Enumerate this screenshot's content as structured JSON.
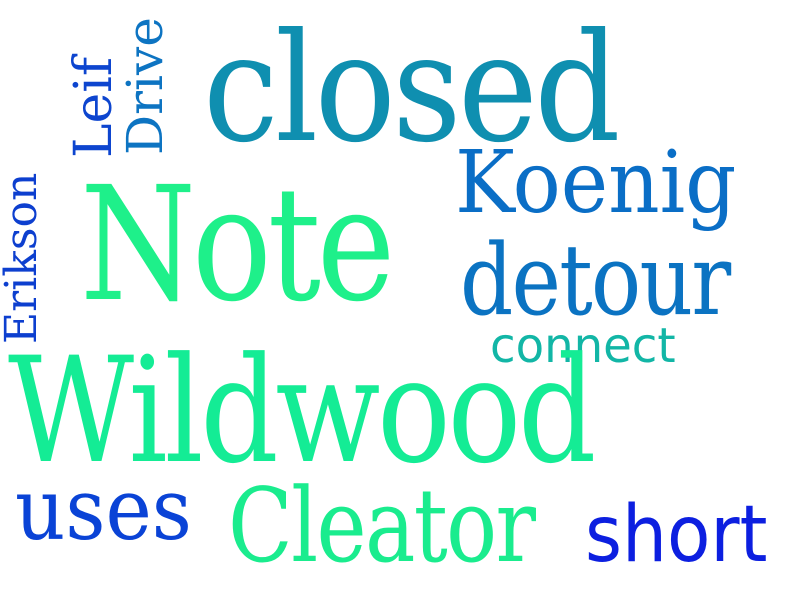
{
  "cloud": {
    "words": {
      "closed": {
        "text": "closed",
        "color": "#0f8fb0"
      },
      "note": {
        "text": "Note",
        "color": "#1ef08a"
      },
      "koenig": {
        "text": "Koenig",
        "color": "#0a6ec6"
      },
      "detour": {
        "text": "detour",
        "color": "#0b73c2"
      },
      "connect": {
        "text": "connect",
        "color": "#12b6a6"
      },
      "wildwood": {
        "text": "Wildwood",
        "color": "#14ec95"
      },
      "uses": {
        "text": "uses",
        "color": "#0a43d6"
      },
      "cleator": {
        "text": "Cleator",
        "color": "#1aec8e"
      },
      "short": {
        "text": "short",
        "color": "#0c1fe0"
      },
      "erikson": {
        "text": "Erikson",
        "color": "#0d3fcf"
      },
      "leif": {
        "text": "Leif",
        "color": "#0d45cf"
      },
      "drive": {
        "text": "Drive",
        "color": "#0d74c2"
      }
    }
  }
}
